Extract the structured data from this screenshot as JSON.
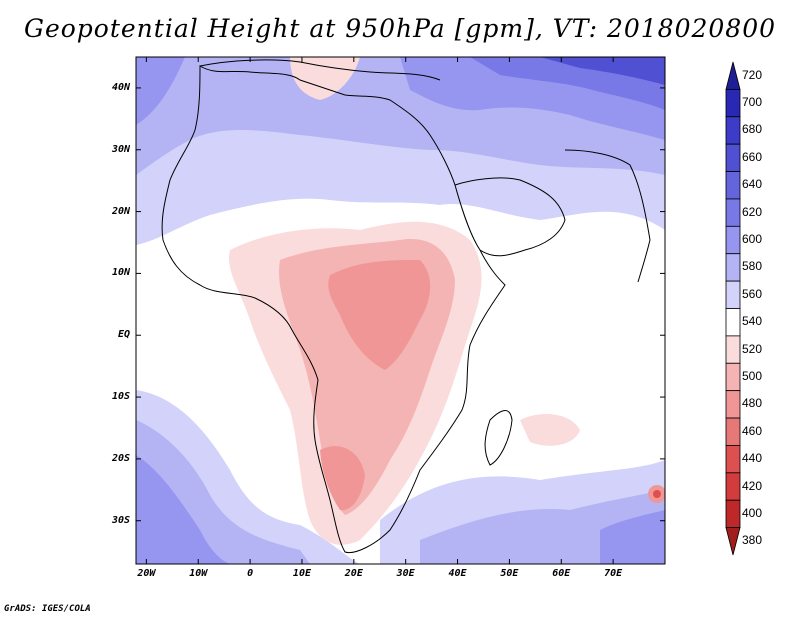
{
  "title": "Geopotential Height at 950hPa [gpm], VT: 2018020800",
  "footer": "GrADS: IGES/COLA",
  "map": {
    "lon_range": [
      -22,
      80
    ],
    "lat_range": [
      -37,
      45
    ],
    "lon_ticks": [
      {
        "value": -20,
        "label": "20W"
      },
      {
        "value": -10,
        "label": "10W"
      },
      {
        "value": 0,
        "label": "0"
      },
      {
        "value": 10,
        "label": "10E"
      },
      {
        "value": 20,
        "label": "20E"
      },
      {
        "value": 30,
        "label": "30E"
      },
      {
        "value": 40,
        "label": "40E"
      },
      {
        "value": 50,
        "label": "50E"
      },
      {
        "value": 60,
        "label": "60E"
      },
      {
        "value": 70,
        "label": "70E"
      }
    ],
    "lat_ticks": [
      {
        "value": 40,
        "label": "40N"
      },
      {
        "value": 30,
        "label": "30N"
      },
      {
        "value": 20,
        "label": "20N"
      },
      {
        "value": 10,
        "label": "10N"
      },
      {
        "value": 0,
        "label": "EQ"
      },
      {
        "value": -10,
        "label": "10S"
      },
      {
        "value": -20,
        "label": "20S"
      },
      {
        "value": -30,
        "label": "30S"
      }
    ]
  },
  "colorbar": {
    "levels": [
      "720",
      "700",
      "680",
      "660",
      "640",
      "620",
      "600",
      "580",
      "560",
      "540",
      "520",
      "500",
      "480",
      "460",
      "440",
      "420",
      "400",
      "380"
    ],
    "colors": [
      "#1e1e96",
      "#2828b4",
      "#3c3cc8",
      "#5050d2",
      "#6464dc",
      "#7878e6",
      "#9696f0",
      "#b4b4f5",
      "#d2d2fa",
      "#ffffff",
      "#fadcdc",
      "#f5b4b4",
      "#f09696",
      "#e67878",
      "#dc5050",
      "#d23c3c",
      "#be2828",
      "#a01e1e"
    ]
  }
}
